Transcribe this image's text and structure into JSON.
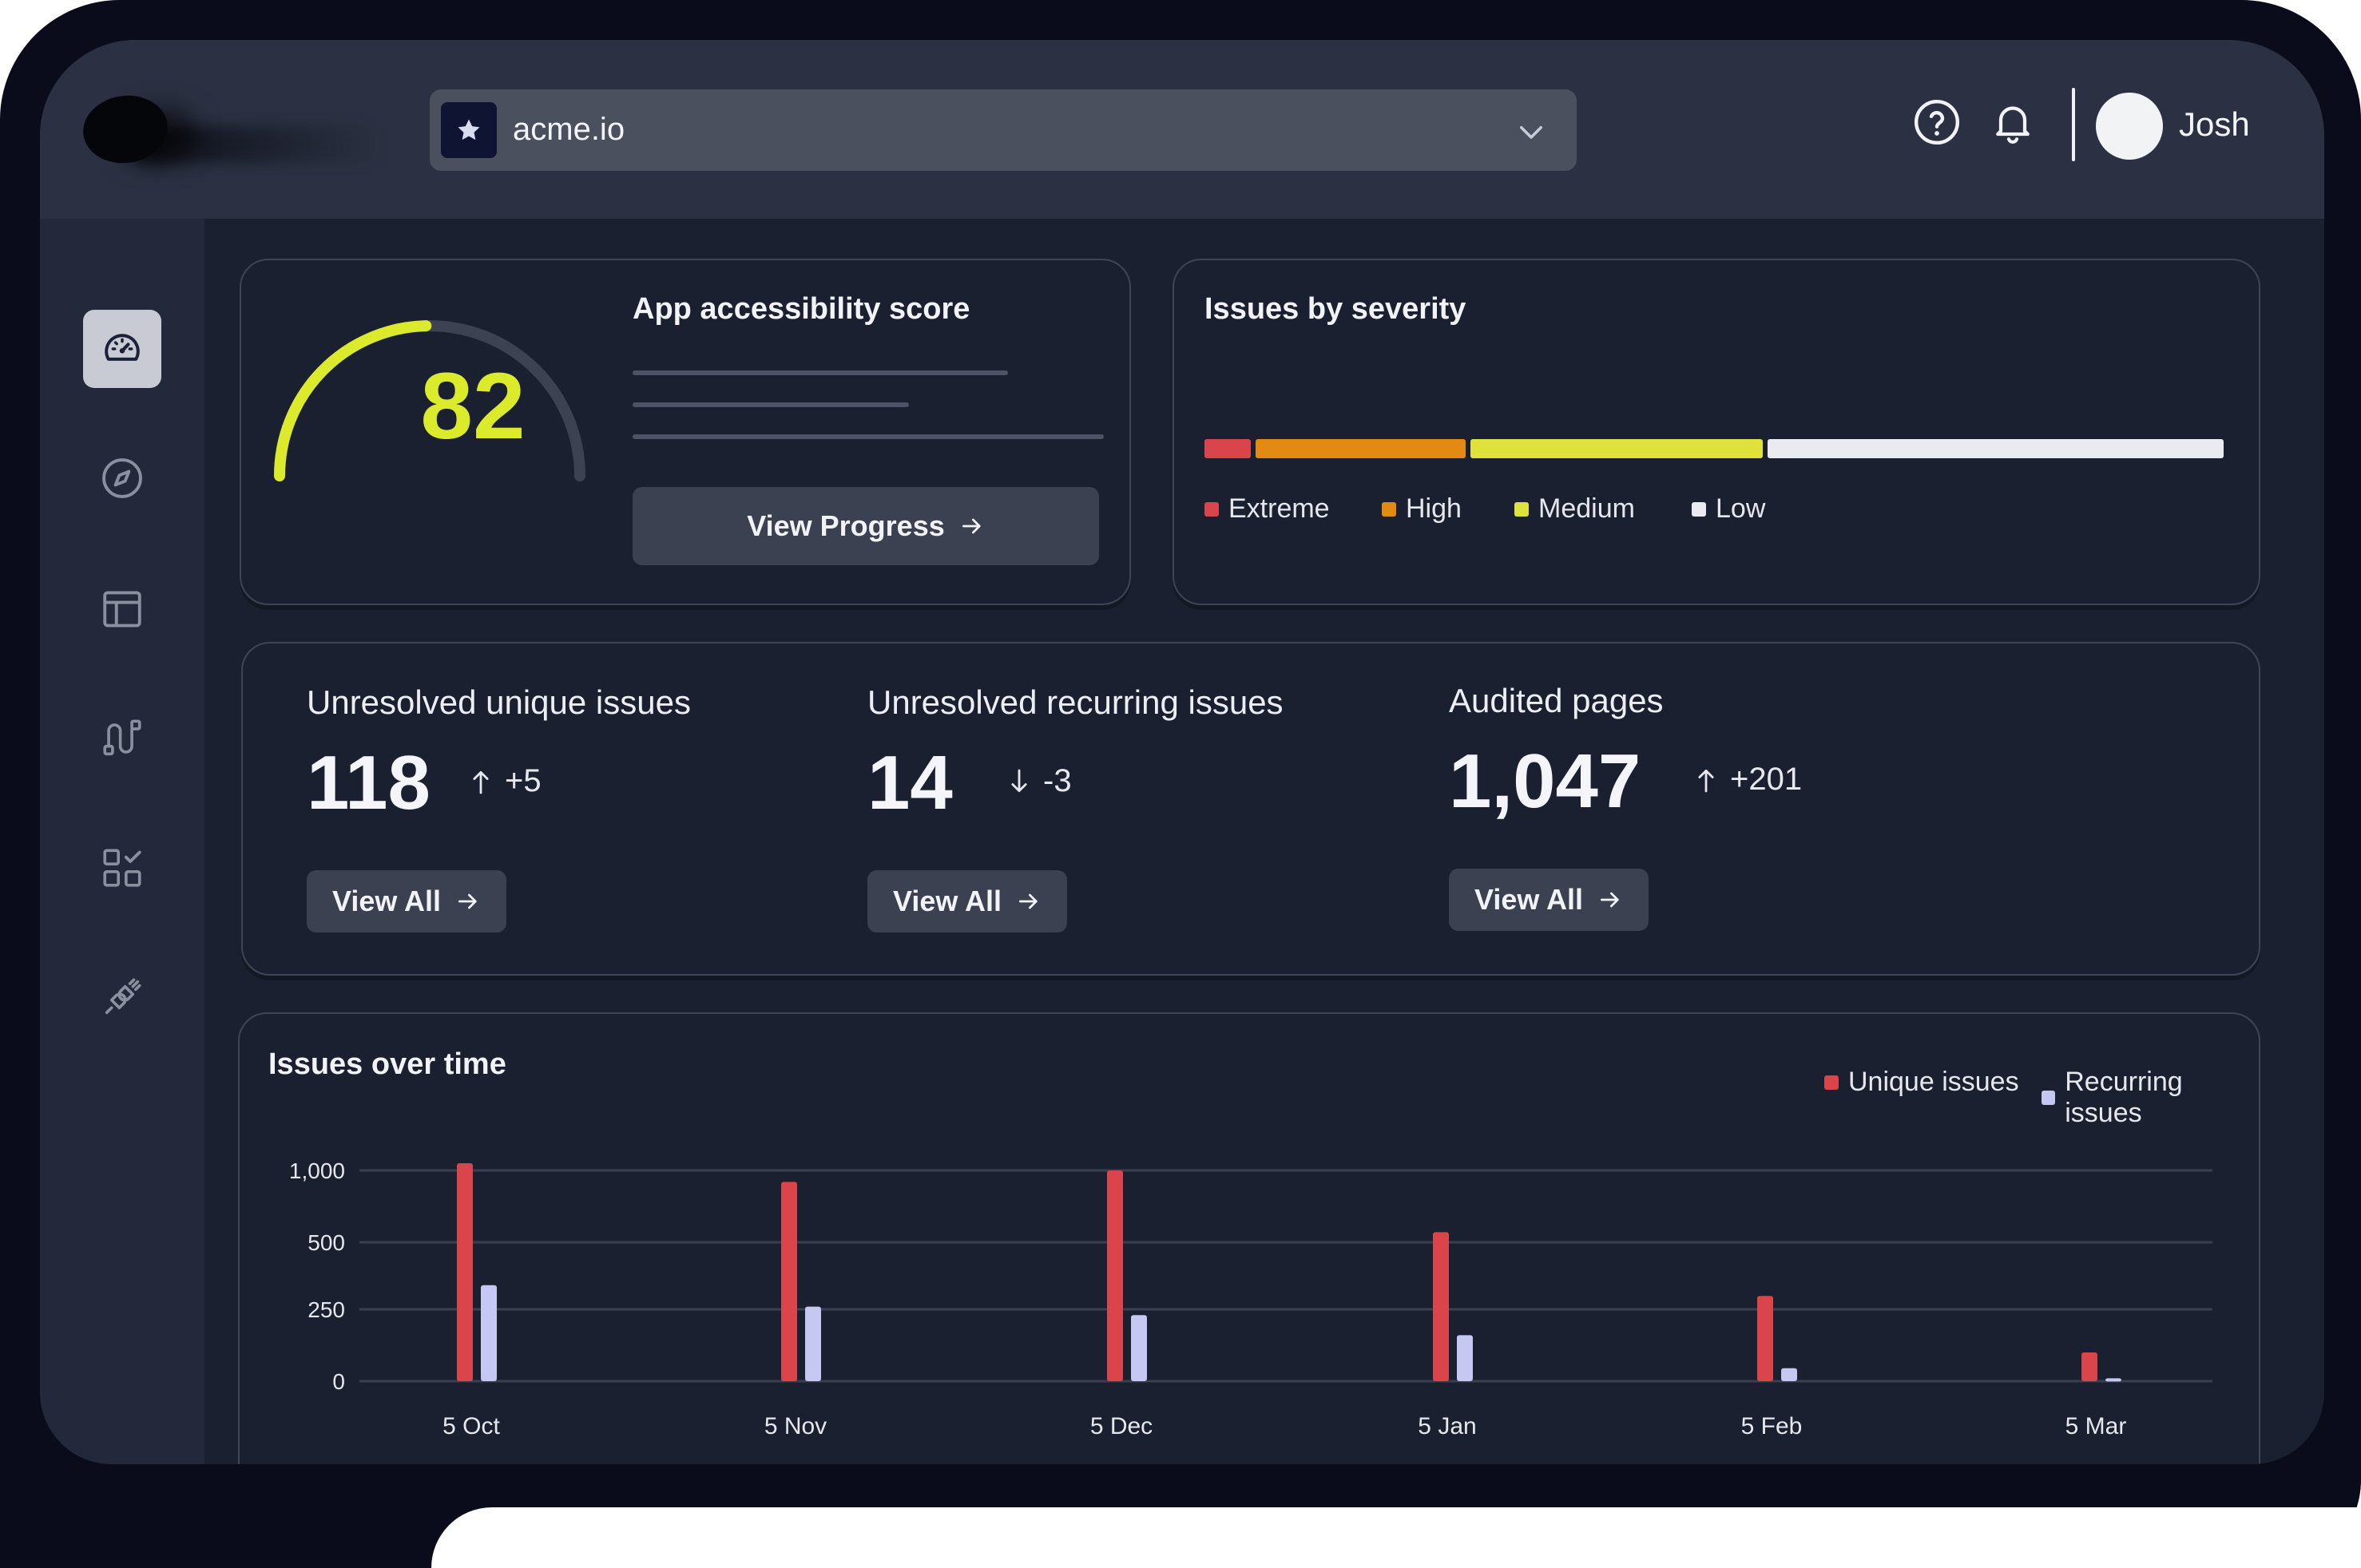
{
  "header": {
    "site_name": "acme.io",
    "user_name": "Josh",
    "icons": [
      "star-icon",
      "chevron-down-icon",
      "help-icon",
      "bell-icon"
    ]
  },
  "sidebar": {
    "items": [
      {
        "name": "dashboard",
        "icon": "speedometer-icon",
        "active": true
      },
      {
        "name": "explore",
        "icon": "compass-icon",
        "active": false
      },
      {
        "name": "layout",
        "icon": "layout-icon",
        "active": false
      },
      {
        "name": "flows",
        "icon": "route-icon",
        "active": false
      },
      {
        "name": "checklist",
        "icon": "grid-check-icon",
        "active": false
      },
      {
        "name": "integrations",
        "icon": "plug-icon",
        "active": false
      }
    ]
  },
  "score_card": {
    "title": "App accessibility score",
    "score": "82",
    "score_fraction": 0.82,
    "button_label": "View Progress",
    "score_color": "#dcea2c"
  },
  "severity_card": {
    "title": "Issues by severity",
    "segments": [
      {
        "label": "Extreme",
        "color": "#d9454b",
        "share": 0.05
      },
      {
        "label": "High",
        "color": "#e28a12",
        "share": 0.21
      },
      {
        "label": "Medium",
        "color": "#dfe23b",
        "share": 0.29
      },
      {
        "label": "Low",
        "color": "#e9ebef",
        "share": 0.45
      }
    ]
  },
  "stats": [
    {
      "label": "Unresolved unique issues",
      "value": "118",
      "delta": "+5",
      "direction": "up",
      "button_label": "View All"
    },
    {
      "label": "Unresolved recurring issues",
      "value": "14",
      "delta": "-3",
      "direction": "down",
      "button_label": "View All"
    },
    {
      "label": "Audited pages",
      "value": "1,047",
      "delta": "+201",
      "direction": "up",
      "button_label": "View All"
    }
  ],
  "chart_data": {
    "type": "bar",
    "title": "Issues over time",
    "categories": [
      "5 Oct",
      "5 Nov",
      "5 Dec",
      "5 Jan",
      "5 Feb",
      "5 Mar"
    ],
    "series": [
      {
        "name": "Unique issues",
        "color": "#d9454b",
        "values": [
          1050,
          920,
          1000,
          570,
          300,
          100
        ]
      },
      {
        "name": "Recurring issues",
        "color": "#c5c9f2",
        "values": [
          340,
          260,
          230,
          160,
          45,
          10
        ]
      }
    ],
    "yticks": [
      "1,000",
      "500",
      "250",
      "0"
    ],
    "legend": "top-right",
    "grid": true
  }
}
